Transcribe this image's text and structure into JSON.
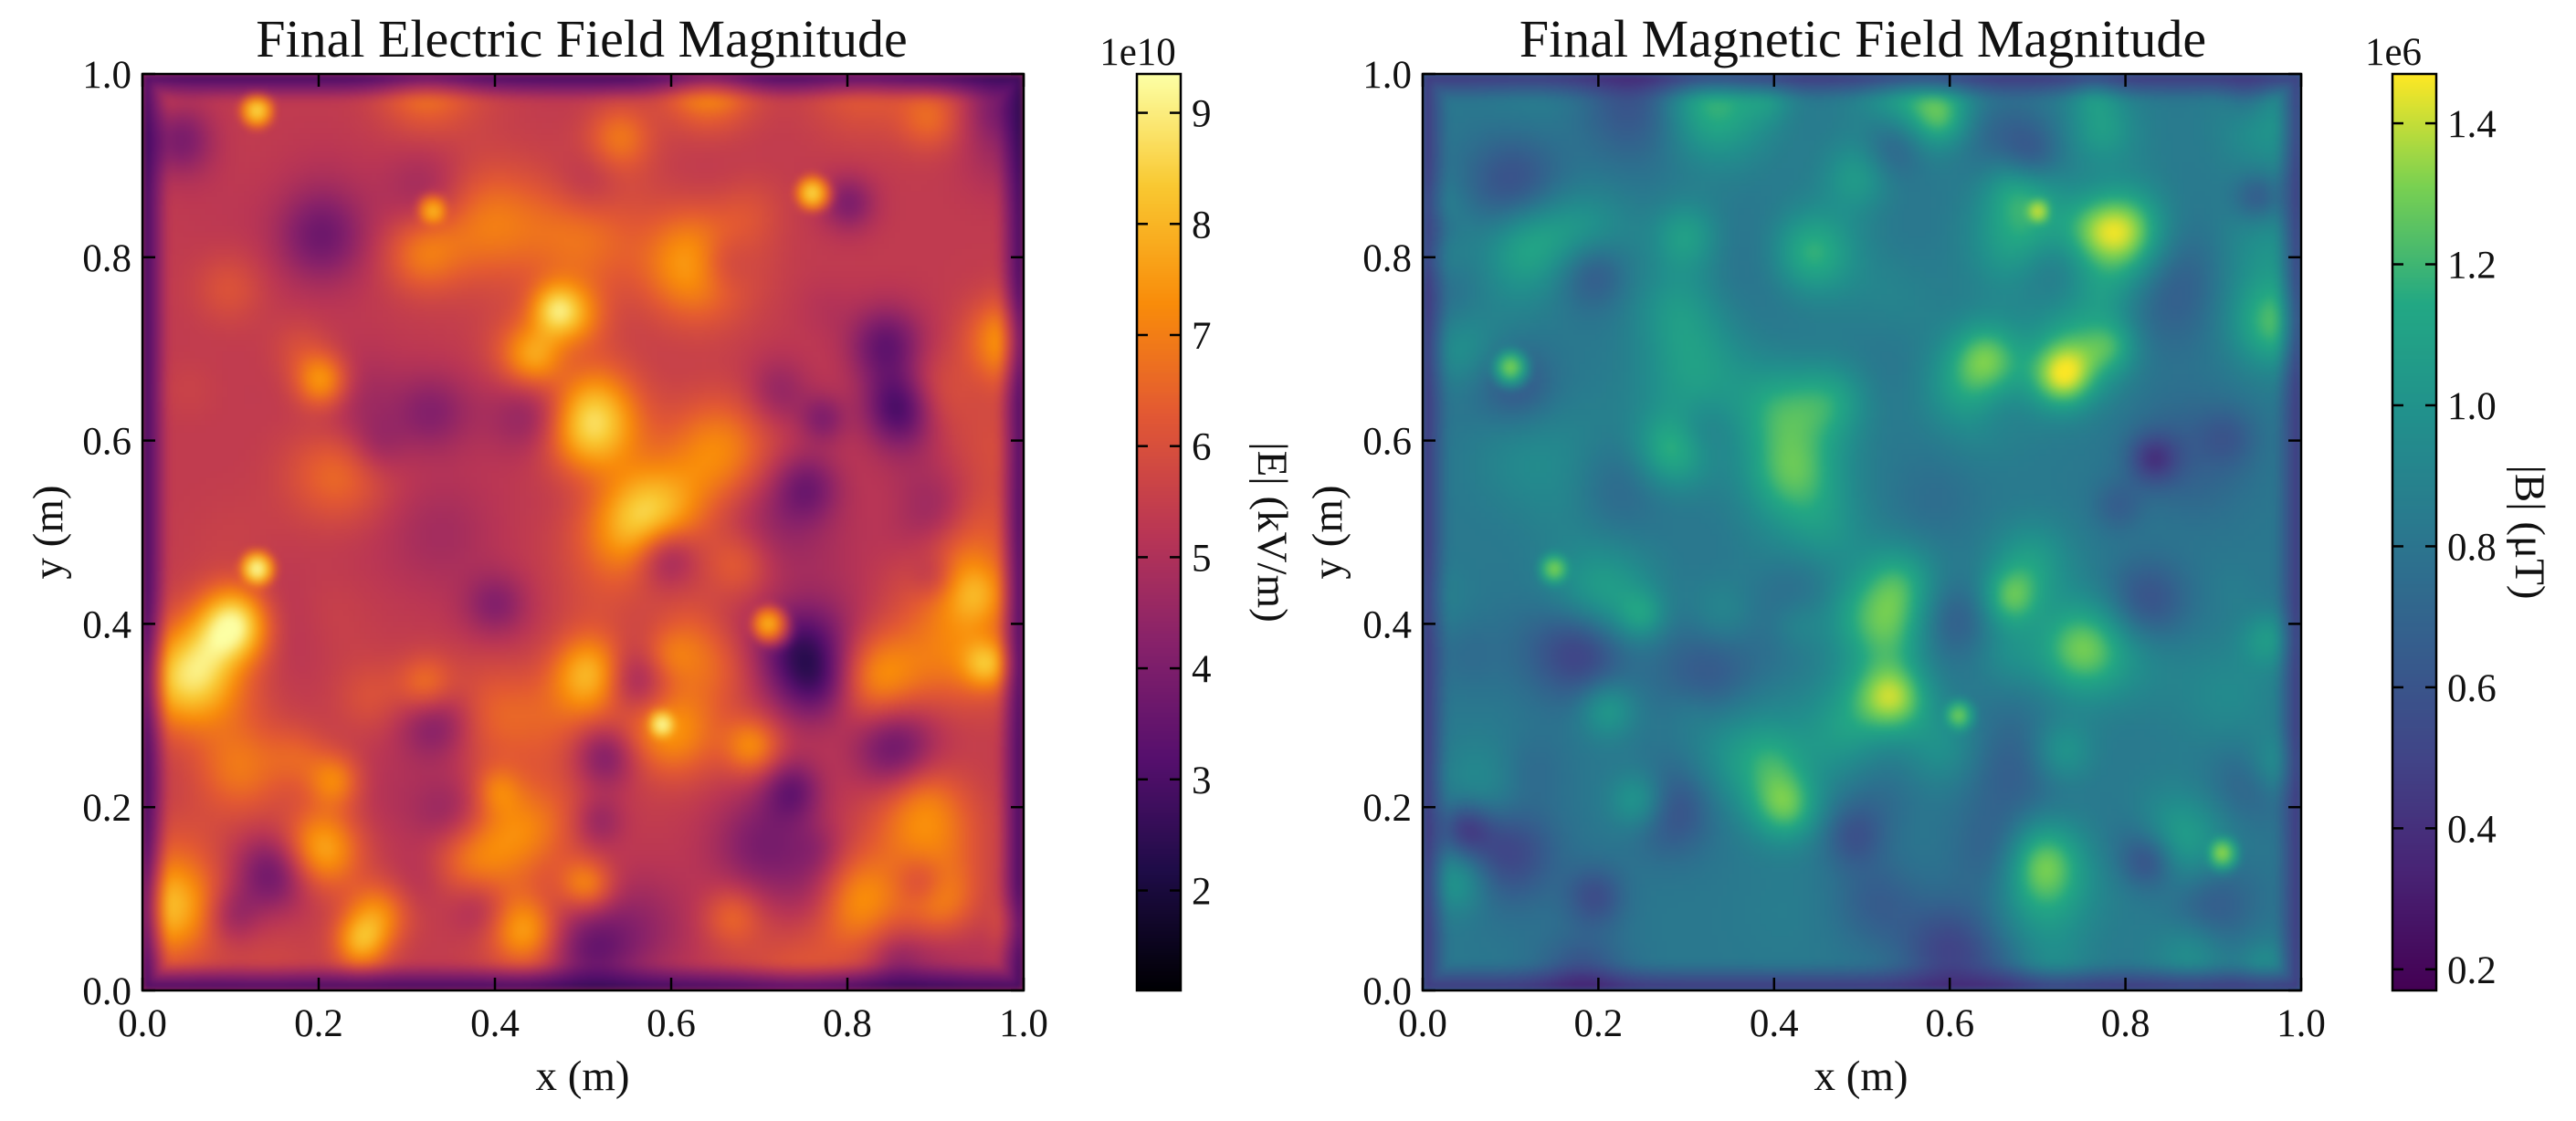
{
  "chart_data": [
    {
      "type": "heatmap",
      "title": "Final Electric Field Magnitude",
      "xlabel": "x (m)",
      "ylabel": "y (m)",
      "xlim": [
        0.0,
        1.0
      ],
      "ylim": [
        0.0,
        1.0
      ],
      "xticks": [
        "0.0",
        "0.2",
        "0.4",
        "0.6",
        "0.8",
        "1.0"
      ],
      "yticks": [
        "0.0",
        "0.2",
        "0.4",
        "0.6",
        "0.8",
        "1.0"
      ],
      "colormap": "inferno",
      "colorbar": {
        "label": "|E| (kV/m)",
        "exponent": "1e10",
        "range": [
          1.1,
          9.35
        ],
        "ticks": [
          "2",
          "3",
          "4",
          "5",
          "6",
          "7",
          "8",
          "9"
        ],
        "tick_values": [
          2,
          3,
          4,
          5,
          6,
          7,
          8,
          9
        ]
      },
      "field_description": "smooth random blob field; hotspots near (0.13,0.46), (0.59,0.29), (0.13,0.96), (0.76,0.87)",
      "hotspots": [
        {
          "x": 0.13,
          "y": 0.46,
          "v": 9.3
        },
        {
          "x": 0.59,
          "y": 0.29,
          "v": 9.3
        },
        {
          "x": 0.13,
          "y": 0.96,
          "v": 8.6
        },
        {
          "x": 0.76,
          "y": 0.87,
          "v": 8.6
        },
        {
          "x": 0.33,
          "y": 0.85,
          "v": 8.0
        },
        {
          "x": 0.71,
          "y": 0.4,
          "v": 7.9
        }
      ]
    },
    {
      "type": "heatmap",
      "title": "Final Magnetic Field Magnitude",
      "xlabel": "x (m)",
      "ylabel": "y (m)",
      "xlim": [
        0.0,
        1.0
      ],
      "ylim": [
        0.0,
        1.0
      ],
      "xticks": [
        "0.0",
        "0.2",
        "0.4",
        "0.6",
        "0.8",
        "1.0"
      ],
      "yticks": [
        "0.0",
        "0.2",
        "0.4",
        "0.6",
        "0.8",
        "1.0"
      ],
      "colormap": "viridis",
      "colorbar": {
        "label": "|B| (μT)",
        "exponent": "1e6",
        "range": [
          0.17,
          1.47
        ],
        "ticks": [
          "0.2",
          "0.4",
          "0.6",
          "0.8",
          "1.0",
          "1.2",
          "1.4"
        ],
        "tick_values": [
          0.2,
          0.4,
          0.6,
          0.8,
          1.0,
          1.2,
          1.4
        ]
      },
      "hotspots": [
        {
          "x": 0.7,
          "y": 0.85,
          "v": 1.42
        },
        {
          "x": 0.91,
          "y": 0.15,
          "v": 1.35
        },
        {
          "x": 0.15,
          "y": 0.46,
          "v": 1.32
        },
        {
          "x": 0.1,
          "y": 0.68,
          "v": 1.32
        },
        {
          "x": 0.61,
          "y": 0.3,
          "v": 1.3
        }
      ]
    }
  ]
}
